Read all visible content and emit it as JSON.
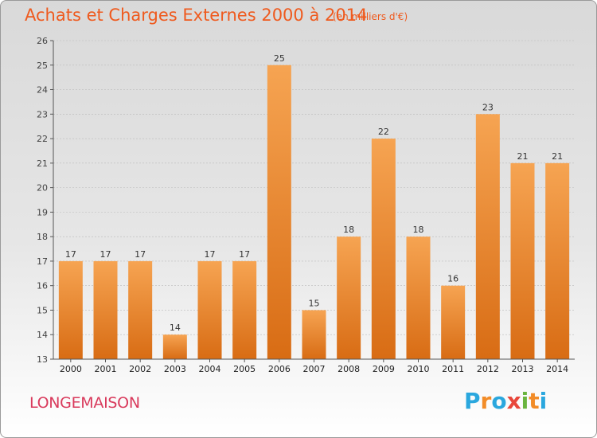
{
  "header": {
    "title": "Achats et Charges Externes 2000 à 2014",
    "unit": "(en milliers d'€)"
  },
  "footer": {
    "place": "LONGEMAISON",
    "logo_letters": [
      "P",
      "r",
      "o",
      "x",
      "i",
      "t",
      "i"
    ],
    "logo_colors": [
      "#2aa7de",
      "#f28c28",
      "#2aa7de",
      "#e8463a",
      "#6ab43e",
      "#f28c28",
      "#2aa7de"
    ]
  },
  "colors": {
    "bar_top": "#f6a452",
    "bar_bottom": "#d86c14",
    "grid": "#bbbbbb"
  },
  "chart_data": {
    "type": "bar",
    "categories": [
      "2000",
      "2001",
      "2002",
      "2003",
      "2004",
      "2005",
      "2006",
      "2007",
      "2008",
      "2009",
      "2010",
      "2011",
      "2012",
      "2013",
      "2014"
    ],
    "values": [
      17,
      17,
      17,
      14,
      17,
      17,
      25,
      15,
      18,
      22,
      18,
      16,
      23,
      21,
      21
    ],
    "ylim": [
      13,
      26
    ],
    "yticks": [
      13,
      14,
      15,
      16,
      17,
      18,
      19,
      20,
      21,
      22,
      23,
      24,
      25,
      26
    ],
    "grid": true
  }
}
